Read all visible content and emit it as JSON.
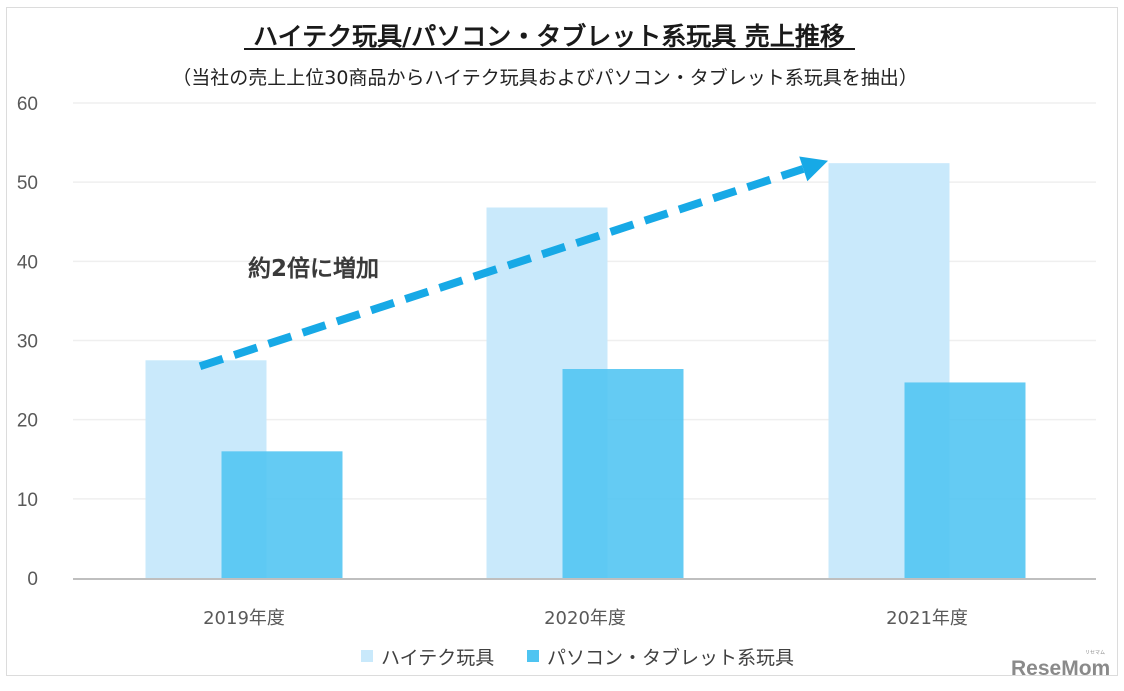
{
  "chart_data": {
    "type": "bar",
    "title": "ハイテク玩具/パソコン・タブレット系玩具 売上推移",
    "subtitle": "（当社の売上上位30商品からハイテク玩具およびパソコン・タブレット系玩具を抽出）",
    "categories": [
      "2019年度",
      "2020年度",
      "2021年度"
    ],
    "series": [
      {
        "name": "ハイテク玩具",
        "values": [
          27.5,
          46.8,
          52.4
        ],
        "color": "#c9e9fb"
      },
      {
        "name": "パソコン・タブレット系玩具",
        "values": [
          16,
          26.4,
          24.7
        ],
        "color": "#4ec4f1"
      }
    ],
    "ylim": [
      0,
      60
    ],
    "yticks": [
      "0",
      "10",
      "20",
      "30",
      "40",
      "50",
      "60"
    ],
    "ytick_values": [
      0,
      10,
      20,
      30,
      40,
      50,
      60
    ],
    "xlabel": "",
    "ylabel": "",
    "grid": true,
    "legend": "bottom",
    "annotation": {
      "text": "約2倍に増加",
      "arrow_from": {
        "category": "2019年度",
        "value": 27
      },
      "arrow_to": {
        "category": "2021年度",
        "value": 52.7
      },
      "arrow_color": "#17a9e6"
    },
    "axis_color": "#bfbfbf",
    "grid_color": "#efefef"
  },
  "watermark": {
    "text": "ReseMom",
    "small": "リセマム"
  }
}
